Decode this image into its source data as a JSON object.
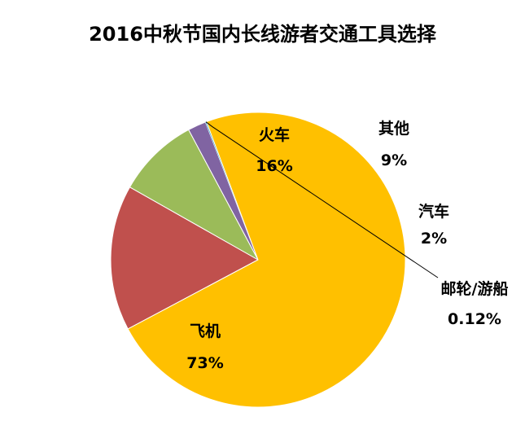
{
  "chart_data": {
    "type": "pie",
    "title": "2016中秋节国内长线游者交通工具选择",
    "slices": [
      {
        "name": "火车",
        "value": 16,
        "label": "16%",
        "color": "#C0504D"
      },
      {
        "name": "其他",
        "value": 9,
        "label": "9%",
        "color": "#9BBB59"
      },
      {
        "name": "汽车",
        "value": 2,
        "label": "2%",
        "color": "#8064A2"
      },
      {
        "name": "邮轮/游船",
        "value": 0.12,
        "label": "0.12%",
        "color": "#4BACC6"
      },
      {
        "name": "飞机",
        "value": 73,
        "label": "73%",
        "color": "#FFC000"
      }
    ]
  }
}
